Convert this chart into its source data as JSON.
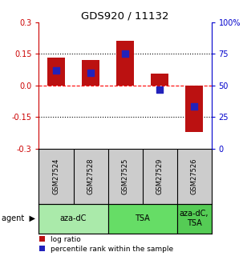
{
  "title": "GDS920 / 11132",
  "samples": [
    "GSM27524",
    "GSM27528",
    "GSM27525",
    "GSM27529",
    "GSM27526"
  ],
  "log_ratios": [
    0.13,
    0.12,
    0.21,
    0.055,
    -0.22
  ],
  "percentile_ranks_val": [
    0.07,
    0.06,
    0.15,
    -0.02,
    -0.1
  ],
  "groups": [
    {
      "label": "aza-dC",
      "indices": [
        0,
        1
      ],
      "color": "#aaeaaa"
    },
    {
      "label": "TSA",
      "indices": [
        2,
        3
      ],
      "color": "#66dd66"
    },
    {
      "label": "aza-dC,\nTSA",
      "indices": [
        4
      ],
      "color": "#55cc55"
    }
  ],
  "ylim": [
    -0.3,
    0.3
  ],
  "yticks_left": [
    -0.3,
    -0.15,
    0.0,
    0.15,
    0.3
  ],
  "yticks_right_labels": [
    "0",
    "25",
    "50",
    "75",
    "100%"
  ],
  "hlines_dotted": [
    -0.15,
    0.15
  ],
  "hline_dashed": 0.0,
  "bar_color": "#bb1111",
  "dot_color": "#2222bb",
  "bar_width": 0.5,
  "dot_size": 40,
  "left_axis_color": "#cc0000",
  "right_axis_color": "#0000cc",
  "background_color": "#ffffff",
  "sample_bg_color": "#cccccc",
  "label_log_ratio": "log ratio",
  "label_percentile": "percentile rank within the sample",
  "agent_label": "agent"
}
